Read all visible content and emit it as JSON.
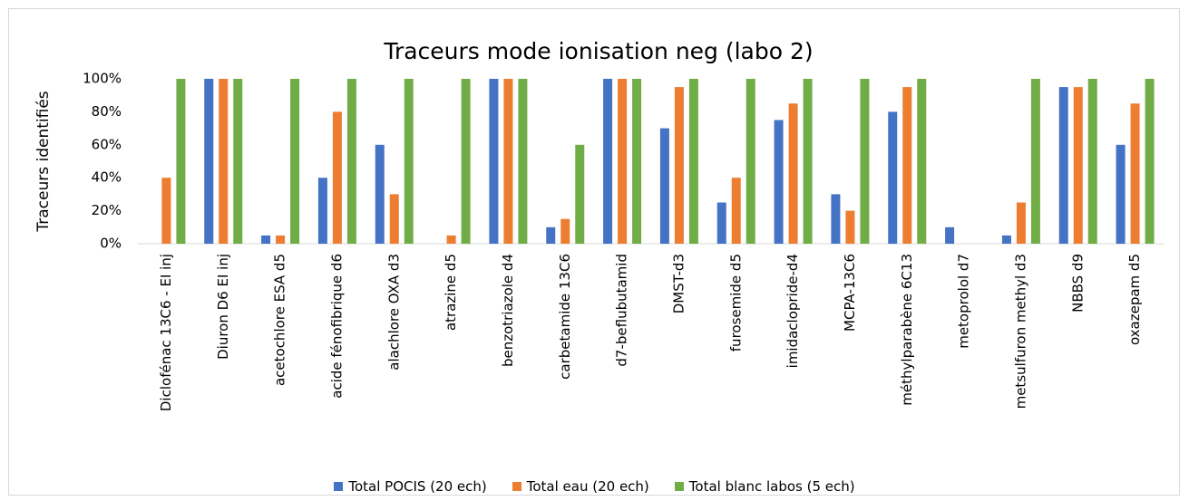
{
  "chart_data": {
    "type": "bar",
    "title": "Traceurs mode ionisation neg (labo 2)",
    "y_label": "Traceurs identifiés",
    "categories": [
      "Diclofénac 13C6 - EI inj",
      "Diuron D6 EI inj",
      "acetochlore ESA d5",
      "acide fénofibrique d6",
      "alachlore OXA d3",
      "atrazine d5",
      "benzotriazole d4",
      "carbetamide 13C6",
      "d7-beflubutamid",
      "DMST-d3",
      "furosemide d5",
      "imidaclopride-d4",
      "MCPA-13C6",
      "méthylparabène 6C13",
      "metoprolol d7",
      "metsulfuron methyl d3",
      "NBBS d9",
      "oxazepam d5"
    ],
    "series": [
      {
        "name": "Total POCIS (20 ech)",
        "color": "#4472c4",
        "values": [
          0,
          100,
          5,
          40,
          60,
          0,
          100,
          10,
          100,
          70,
          25,
          75,
          30,
          80,
          10,
          5,
          95,
          60
        ]
      },
      {
        "name": "Total eau (20 ech)",
        "color": "#ed7d31",
        "values": [
          40,
          100,
          5,
          80,
          30,
          5,
          100,
          15,
          100,
          95,
          40,
          85,
          20,
          95,
          0,
          25,
          95,
          85
        ]
      },
      {
        "name": "Total blanc labos (5 ech)",
        "color": "#70ad47",
        "values": [
          100,
          100,
          100,
          100,
          100,
          100,
          100,
          60,
          100,
          100,
          100,
          100,
          100,
          100,
          0,
          100,
          100,
          100
        ]
      }
    ],
    "ylim": [
      0,
      100
    ],
    "yticks": [
      {
        "value": 0,
        "label": "0%"
      },
      {
        "value": 20,
        "label": "20%"
      },
      {
        "value": 40,
        "label": "40%"
      },
      {
        "value": 60,
        "label": "60%"
      },
      {
        "value": 80,
        "label": "80%"
      },
      {
        "value": 100,
        "label": "100%"
      }
    ],
    "grid": false,
    "legend": "bottom"
  }
}
